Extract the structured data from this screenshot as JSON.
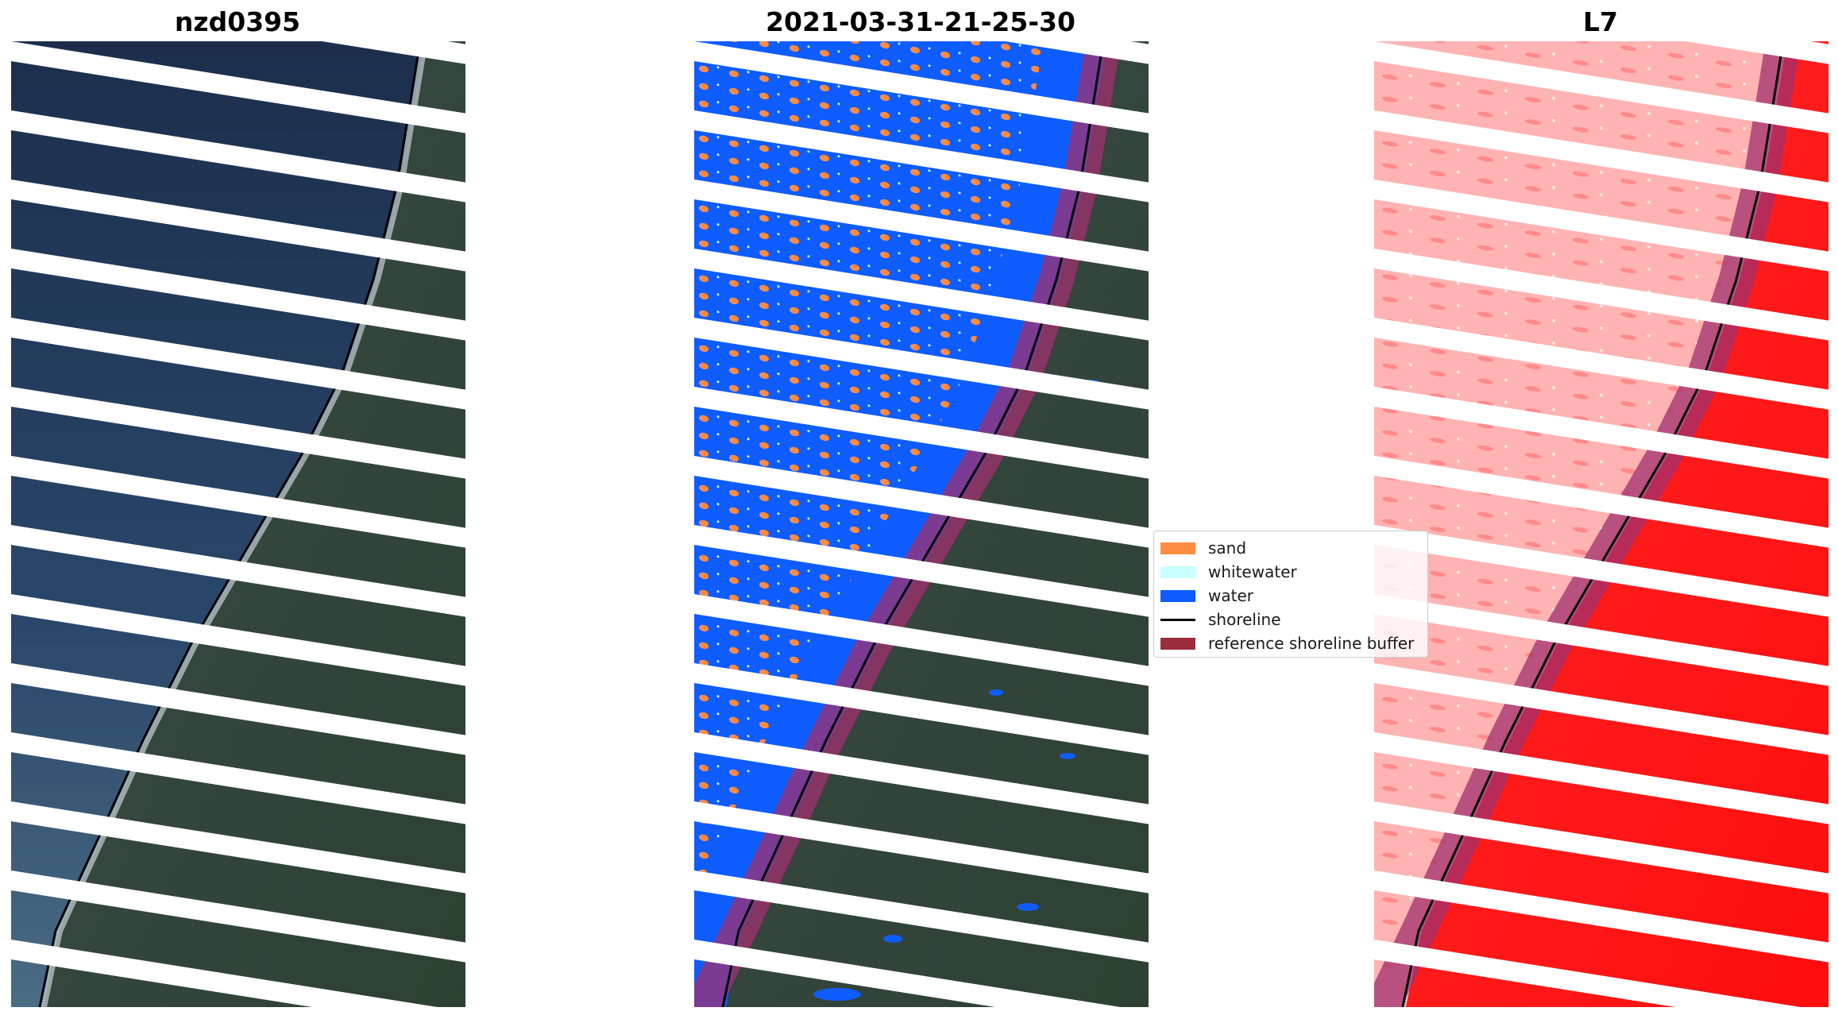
{
  "panels": [
    {
      "title": "nzd0395"
    },
    {
      "title": "2021-03-31-21-25-30"
    },
    {
      "title": "L7"
    }
  ],
  "legend": {
    "items": [
      {
        "label": "sand",
        "color": "#ff8c42"
      },
      {
        "label": "whitewater",
        "color": "#c8ffff"
      },
      {
        "label": "water",
        "color": "#0f5cff"
      },
      {
        "label": "shoreline",
        "color": "#000000"
      },
      {
        "label": "reference shoreline buffer",
        "color": "#9b2d3c"
      }
    ]
  },
  "colors": {
    "ocean_dark": "#1d2f4d",
    "ocean_light": "#3c5f78",
    "land": "#35463f",
    "water_mask": "#0f5cff",
    "sand": "#ff8c42",
    "buffer": "#a0306e",
    "l7_sea": "#ffb3b3",
    "l7_land": "#ff1a1a"
  }
}
